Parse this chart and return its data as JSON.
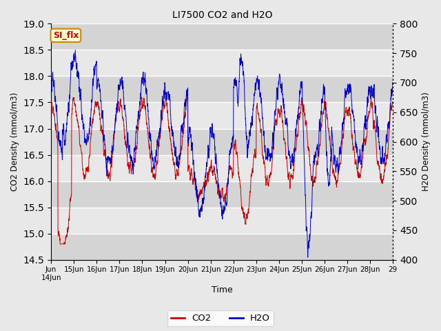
{
  "title": "LI7500 CO2 and H2O",
  "xlabel": "Time",
  "ylabel_left": "CO2 Density (mmol/m3)",
  "ylabel_right": "H2O Density (mmol/m3)",
  "co2_color": "#CC0000",
  "h2o_color": "#0000CC",
  "ylim_left": [
    14.5,
    19.0
  ],
  "ylim_right": [
    400,
    800
  ],
  "annotation_label": "SI_flx",
  "annotation_color": "#CC0000",
  "annotation_bg": "#FFFFCC",
  "annotation_border": "#CC8800",
  "bg_light": "#E8E8E8",
  "bg_dark": "#D0D0D0",
  "grid_color": "#FFFFFF",
  "n_points": 3000,
  "seed": 7
}
